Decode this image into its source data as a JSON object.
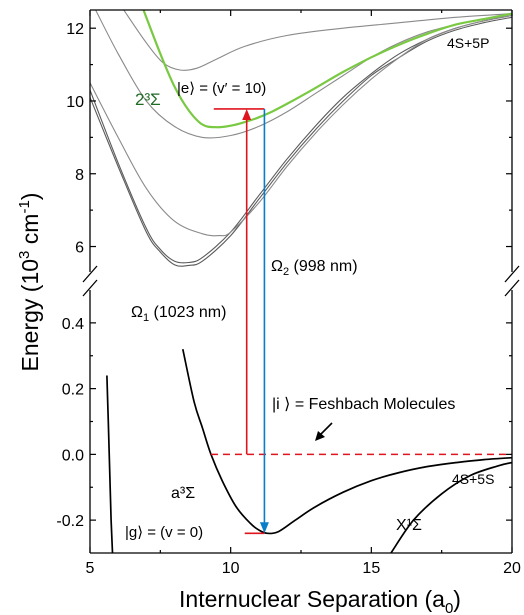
{
  "chart_data": {
    "type": "line",
    "xlabel": "Internuclear Separation (a",
    "xlabel_sub": "0",
    "xlabel_close": ")",
    "ylabel": "Energy (10",
    "ylabel_sup": "3",
    "ylabel_mid": " cm",
    "ylabel_sup2": "-1",
    "ylabel_close": ")",
    "xlim": [
      5,
      20
    ],
    "x_ticks": [
      5,
      10,
      15,
      20
    ],
    "upper_panel": {
      "ylim": [
        5.3,
        12.5
      ],
      "y_ticks": [
        6,
        8,
        10,
        12
      ]
    },
    "lower_panel": {
      "ylim": [
        -0.3,
        0.5
      ],
      "y_ticks": [
        -0.2,
        0.0,
        0.2,
        0.4
      ]
    },
    "series": [
      {
        "panel": "upper",
        "color": "#5b5b5b",
        "x": [
          5.0,
          6.0,
          7.0,
          7.5,
          8.0,
          8.5,
          9.0,
          10.0,
          11.0,
          12.0,
          13.0,
          14.0,
          15.0,
          16.0,
          17.0,
          18.0,
          19.0,
          20.0
        ],
        "y": [
          10.3,
          8.3,
          6.5,
          5.92,
          5.6,
          5.56,
          5.7,
          6.4,
          7.4,
          8.4,
          9.3,
          10.1,
          10.75,
          11.3,
          11.7,
          12.0,
          12.2,
          12.35
        ]
      },
      {
        "panel": "upper",
        "color": "#5b5b5b",
        "x": [
          5.0,
          6.0,
          7.0,
          7.5,
          8.0,
          8.5,
          9.0,
          10.0,
          11.0,
          12.0,
          13.0,
          14.0,
          15.0,
          16.0,
          17.0,
          18.0,
          19.0,
          20.0
        ],
        "y": [
          10.1,
          8.2,
          6.4,
          5.85,
          5.5,
          5.48,
          5.6,
          6.3,
          7.3,
          8.3,
          9.2,
          10.0,
          10.7,
          11.2,
          11.65,
          11.95,
          12.15,
          12.3
        ]
      },
      {
        "panel": "upper",
        "color": "#8a8a8a",
        "x": [
          5.0,
          6.0,
          7.0,
          8.0,
          9.0,
          9.6,
          10.0,
          11.0,
          12.0,
          13.0,
          14.0,
          15.0,
          16.0,
          17.0,
          18.0,
          19.0,
          20.0
        ],
        "y": [
          10.5,
          9.0,
          7.6,
          6.7,
          6.35,
          6.3,
          6.4,
          7.2,
          8.2,
          9.1,
          9.9,
          10.6,
          11.2,
          11.7,
          12.0,
          12.2,
          12.35
        ]
      },
      {
        "panel": "upper",
        "color": "#8a8a8a",
        "x": [
          5.2,
          6.0,
          7.0,
          8.0,
          9.0,
          10.0,
          11.0,
          12.0,
          13.0,
          14.0,
          15.0,
          16.0,
          17.0,
          18.0,
          19.0,
          20.0
        ],
        "y": [
          12.5,
          11.3,
          10.0,
          9.3,
          9.0,
          9.05,
          9.3,
          9.7,
          10.2,
          10.7,
          11.2,
          11.6,
          11.9,
          12.1,
          12.25,
          12.35
        ]
      },
      {
        "panel": "upper",
        "color": "#8a8a8a",
        "x": [
          6.2,
          7.0,
          7.6,
          8.2,
          8.8,
          9.5,
          10.5,
          12.0,
          14.0,
          16.0,
          18.0,
          20.0
        ],
        "y": [
          12.5,
          11.6,
          11.05,
          10.85,
          10.9,
          11.15,
          11.5,
          11.8,
          12.0,
          12.15,
          12.3,
          12.4
        ]
      },
      {
        "panel": "upper",
        "color": "#7ac943",
        "name": "2³Σ",
        "x": [
          6.9,
          7.5,
          8.0,
          8.5,
          9.0,
          9.5,
          10.0,
          10.5,
          11.0,
          11.5,
          12.0,
          13.0,
          14.0,
          15.0,
          16.0,
          17.0,
          18.0,
          19.0,
          20.0
        ],
        "y": [
          12.5,
          11.3,
          10.4,
          9.75,
          9.35,
          9.28,
          9.32,
          9.42,
          9.55,
          9.72,
          9.92,
          10.35,
          10.8,
          11.2,
          11.55,
          11.85,
          12.1,
          12.25,
          12.4
        ]
      },
      {
        "panel": "lower",
        "color": "#000000",
        "name": "a³Σ",
        "x": [
          8.3,
          8.7,
          9.0,
          9.3,
          9.7,
          10.2,
          10.7,
          11.0,
          11.3,
          11.7,
          12.3,
          13.0,
          14.0,
          15.0,
          16.0,
          17.0,
          18.0,
          19.0,
          20.0
        ],
        "y": [
          0.32,
          0.16,
          0.08,
          0.0,
          -0.08,
          -0.16,
          -0.21,
          -0.23,
          -0.24,
          -0.235,
          -0.2,
          -0.16,
          -0.115,
          -0.08,
          -0.055,
          -0.037,
          -0.025,
          -0.016,
          -0.01
        ]
      },
      {
        "panel": "lower",
        "color": "#000000",
        "x": [
          5.6,
          5.65,
          5.7,
          5.75,
          5.8
        ],
        "y": [
          0.24,
          0.1,
          -0.05,
          -0.2,
          -0.3
        ]
      },
      {
        "panel": "lower",
        "color": "#000000",
        "name": "X¹Σ",
        "x": [
          15.7,
          16.5,
          17.5,
          18.5,
          19.5,
          20.0
        ],
        "y": [
          -0.3,
          -0.2,
          -0.12,
          -0.065,
          -0.035,
          -0.025
        ]
      }
    ],
    "feshbach_level": {
      "y": 0.0,
      "x_start": 9.3,
      "x_end": 20.0,
      "color": "#e0141e"
    },
    "transitions": [
      {
        "label_greek": "Ω",
        "label_sub": "1",
        "label_rest": " (1023 nm)",
        "x": 10.57,
        "y_from": 0.0,
        "y_to": 9.78,
        "direction": "up",
        "color": "#e0141e"
      },
      {
        "label_greek": "Ω",
        "label_sub": "2",
        "label_rest": " (998 nm)",
        "x": 11.2,
        "y_from": 9.78,
        "y_to": -0.24,
        "direction": "down",
        "color": "#0a7dc8"
      }
    ],
    "excited_level": {
      "y": 9.78,
      "x_start": 9.4,
      "x_end": 11.2,
      "color": "#e0141e"
    },
    "ground_level": {
      "y": -0.24,
      "x_start": 10.5,
      "x_end": 11.2,
      "color": "#e0141e"
    },
    "annotations": {
      "excited_state": "|e⟩ = (v′ = 10)",
      "green_state": "2³Σ",
      "upper_asymptote": "4S+5P",
      "lower_asymptote": "4S+5S",
      "feshbach": "|i ⟩ = Feshbach Molecules",
      "triplet": "a³Σ",
      "ground": "|g⟩ = (v = 0)",
      "singlet": "X¹Σ"
    }
  }
}
